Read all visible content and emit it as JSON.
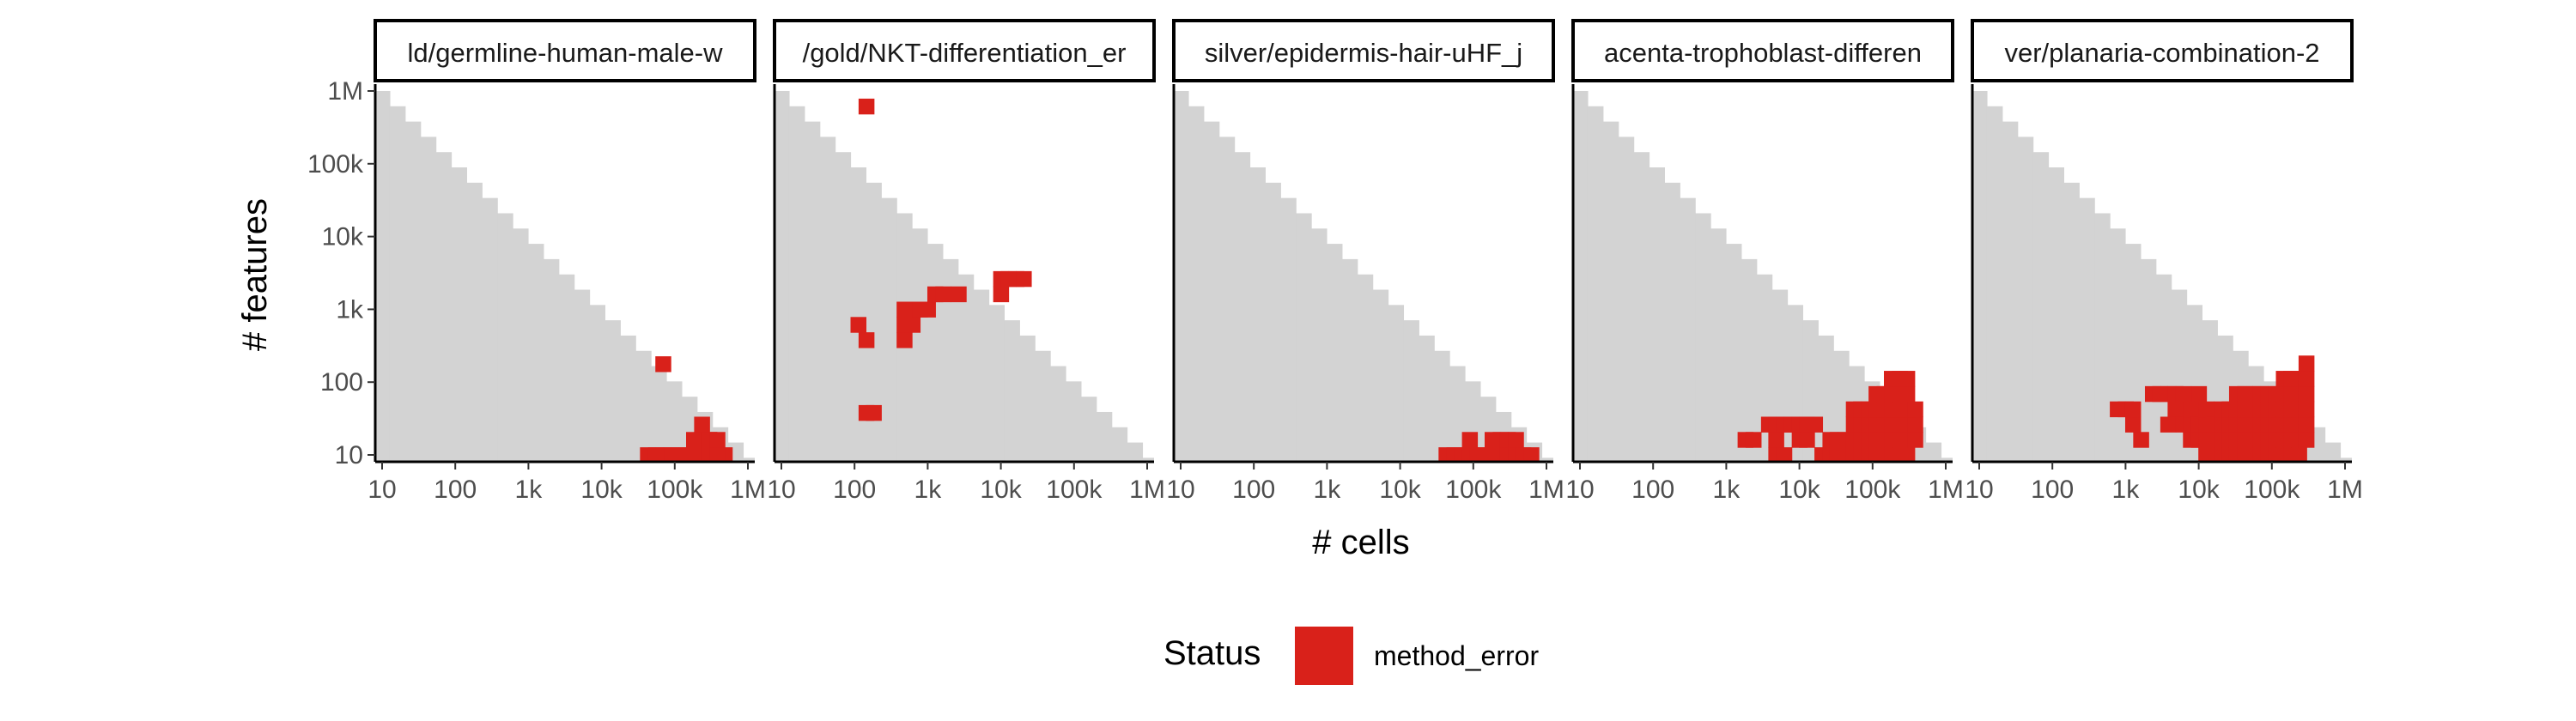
{
  "chart_data": {
    "type": "heatmap",
    "x_scale": "log10",
    "y_scale": "log10",
    "xlabel": "# cells",
    "ylabel": "# features",
    "xlim": [
      10,
      1000000
    ],
    "ylim": [
      10,
      1000000
    ],
    "x_ticks": [
      "10",
      "100",
      "1k",
      "10k",
      "100k",
      "1M"
    ],
    "y_ticks": [
      "10",
      "100",
      "1k",
      "10k",
      "100k",
      "1M"
    ],
    "grid": false,
    "legend": {
      "title": "Status",
      "position": "bottom",
      "entries": [
        {
          "label": "method_error",
          "color": "#d9211a"
        }
      ]
    },
    "colors": {
      "background_cells": "#d3d3d3",
      "method_error": "#d9211a"
    },
    "panels": [
      {
        "strip_label": "ld/germline-human-male-w",
        "method_error_cells_log10_cells_features": [
          [
            4.63,
            1.0
          ],
          [
            4.84,
            1.0
          ],
          [
            4.84,
            2.25
          ],
          [
            5.26,
            1.0
          ],
          [
            4.95,
            1.0
          ],
          [
            5.05,
            1.0
          ],
          [
            4.74,
            1.0
          ],
          [
            5.16,
            1.0
          ],
          [
            5.37,
            1.0
          ],
          [
            5.47,
            1.0
          ],
          [
            5.68,
            1.0
          ],
          [
            5.26,
            1.21
          ],
          [
            5.37,
            1.21
          ],
          [
            5.47,
            1.21
          ],
          [
            5.37,
            1.42
          ],
          [
            5.47,
            1.21
          ],
          [
            5.58,
            1.21
          ],
          [
            5.58,
            1.0
          ]
        ]
      },
      {
        "strip_label": "/gold/NKT-differentiation_er",
        "method_error_cells_log10_cells_features": [
          [
            2.16,
            5.79
          ],
          [
            2.05,
            2.79
          ],
          [
            2.16,
            2.58
          ],
          [
            2.16,
            1.58
          ],
          [
            2.26,
            1.58
          ],
          [
            2.68,
            3.0
          ],
          [
            2.68,
            2.79
          ],
          [
            2.68,
            2.58
          ],
          [
            2.79,
            2.79
          ],
          [
            2.89,
            3.0
          ],
          [
            3.0,
            3.0
          ],
          [
            3.1,
            3.21
          ],
          [
            3.21,
            3.21
          ],
          [
            3.42,
            3.21
          ],
          [
            4.0,
            3.21
          ],
          [
            4.0,
            3.42
          ],
          [
            4.1,
            3.42
          ],
          [
            4.21,
            3.42
          ],
          [
            4.31,
            3.42
          ]
        ]
      },
      {
        "strip_label": "silver/epidermis-hair-uHF_j",
        "method_error_cells_log10_cells_features": [
          [
            4.63,
            1.0
          ],
          [
            4.74,
            1.0
          ],
          [
            4.84,
            1.0
          ],
          [
            4.95,
            1.0
          ],
          [
            5.05,
            1.0
          ],
          [
            5.16,
            1.0
          ],
          [
            4.95,
            1.21
          ],
          [
            5.26,
            1.0
          ],
          [
            5.26,
            1.21
          ],
          [
            5.37,
            1.21
          ],
          [
            5.47,
            1.21
          ],
          [
            5.58,
            1.21
          ],
          [
            5.47,
            1.0
          ],
          [
            5.58,
            1.0
          ],
          [
            5.68,
            1.0
          ],
          [
            5.79,
            1.0
          ]
        ]
      },
      {
        "strip_label": "acenta-trophoblast-differen",
        "method_error_cells_log10_cells_features": [
          [
            3.26,
            1.21
          ],
          [
            3.37,
            1.21
          ],
          [
            3.58,
            1.42
          ],
          [
            3.68,
            1.42
          ],
          [
            3.79,
            1.42
          ],
          [
            3.89,
            1.42
          ],
          [
            4.0,
            1.42
          ],
          [
            4.1,
            1.42
          ],
          [
            4.21,
            1.42
          ],
          [
            3.68,
            1.21
          ],
          [
            3.68,
            1.0
          ],
          [
            3.79,
            1.0
          ],
          [
            4.0,
            1.21
          ],
          [
            4.1,
            1.21
          ],
          [
            4.31,
            1.0
          ],
          [
            4.42,
            1.0
          ],
          [
            4.52,
            1.0
          ],
          [
            4.63,
            1.0
          ],
          [
            4.74,
            1.0
          ],
          [
            4.84,
            1.0
          ],
          [
            4.95,
            1.0
          ],
          [
            5.05,
            1.0
          ],
          [
            5.16,
            1.0
          ],
          [
            5.26,
            1.0
          ],
          [
            5.37,
            1.0
          ],
          [
            5.47,
            1.0
          ],
          [
            4.42,
            1.21
          ],
          [
            4.52,
            1.21
          ],
          [
            4.63,
            1.21
          ],
          [
            4.74,
            1.21
          ],
          [
            4.84,
            1.21
          ],
          [
            4.95,
            1.21
          ],
          [
            5.05,
            1.21
          ],
          [
            5.16,
            1.21
          ],
          [
            5.26,
            1.21
          ],
          [
            5.37,
            1.21
          ],
          [
            5.47,
            1.21
          ],
          [
            5.58,
            1.21
          ],
          [
            4.74,
            1.42
          ],
          [
            4.84,
            1.42
          ],
          [
            4.95,
            1.42
          ],
          [
            5.05,
            1.42
          ],
          [
            5.16,
            1.42
          ],
          [
            5.26,
            1.42
          ],
          [
            5.37,
            1.42
          ],
          [
            5.47,
            1.42
          ],
          [
            5.58,
            1.42
          ],
          [
            4.74,
            1.63
          ],
          [
            4.84,
            1.63
          ],
          [
            4.95,
            1.63
          ],
          [
            5.05,
            1.63
          ],
          [
            5.16,
            1.63
          ],
          [
            5.26,
            1.63
          ],
          [
            5.37,
            1.63
          ],
          [
            5.47,
            1.63
          ],
          [
            5.58,
            1.63
          ],
          [
            5.05,
            1.84
          ],
          [
            5.16,
            1.84
          ],
          [
            5.26,
            1.84
          ],
          [
            5.37,
            1.84
          ],
          [
            5.47,
            1.84
          ],
          [
            5.26,
            2.05
          ],
          [
            5.37,
            2.05
          ],
          [
            5.47,
            2.05
          ]
        ]
      },
      {
        "strip_label": "ver/planaria-combination-2",
        "method_error_cells_log10_cells_features": [
          [
            2.89,
            1.63
          ],
          [
            3.0,
            1.63
          ],
          [
            3.1,
            1.42
          ],
          [
            3.1,
            1.63
          ],
          [
            3.21,
            1.21
          ],
          [
            3.37,
            1.84
          ],
          [
            3.47,
            1.84
          ],
          [
            3.58,
            1.84
          ],
          [
            3.68,
            1.63
          ],
          [
            3.68,
            1.84
          ],
          [
            3.58,
            1.42
          ],
          [
            3.79,
            1.42
          ],
          [
            3.89,
            1.21
          ],
          [
            3.89,
            1.42
          ],
          [
            3.89,
            1.63
          ],
          [
            4.0,
            1.21
          ],
          [
            4.0,
            1.42
          ],
          [
            4.1,
            1.0
          ],
          [
            4.1,
            1.21
          ],
          [
            4.1,
            1.42
          ],
          [
            4.1,
            1.63
          ],
          [
            4.21,
            1.0
          ],
          [
            4.21,
            1.21
          ],
          [
            4.21,
            1.42
          ],
          [
            4.31,
            1.0
          ],
          [
            4.31,
            1.21
          ],
          [
            4.31,
            1.42
          ],
          [
            4.31,
            1.63
          ],
          [
            4.42,
            1.0
          ],
          [
            4.42,
            1.21
          ],
          [
            4.42,
            1.42
          ],
          [
            4.42,
            1.63
          ],
          [
            4.52,
            1.0
          ],
          [
            4.52,
            1.21
          ],
          [
            4.52,
            1.42
          ],
          [
            4.52,
            1.63
          ],
          [
            4.52,
            1.84
          ],
          [
            4.63,
            1.0
          ],
          [
            4.63,
            1.21
          ],
          [
            4.63,
            1.42
          ],
          [
            4.63,
            1.63
          ],
          [
            4.63,
            1.84
          ],
          [
            4.74,
            1.0
          ],
          [
            4.74,
            1.21
          ],
          [
            4.74,
            1.42
          ],
          [
            4.74,
            1.63
          ],
          [
            4.74,
            1.84
          ],
          [
            4.84,
            1.0
          ],
          [
            4.84,
            1.21
          ],
          [
            4.84,
            1.42
          ],
          [
            4.84,
            1.63
          ],
          [
            4.84,
            1.84
          ],
          [
            4.95,
            1.0
          ],
          [
            4.95,
            1.21
          ],
          [
            4.95,
            1.42
          ],
          [
            4.95,
            1.63
          ],
          [
            4.95,
            1.84
          ],
          [
            5.05,
            1.0
          ],
          [
            5.05,
            1.21
          ],
          [
            5.05,
            1.42
          ],
          [
            5.05,
            1.63
          ],
          [
            5.05,
            1.84
          ],
          [
            5.16,
            1.0
          ],
          [
            5.16,
            1.21
          ],
          [
            5.16,
            1.42
          ],
          [
            5.16,
            1.63
          ],
          [
            5.16,
            1.84
          ],
          [
            5.16,
            2.05
          ],
          [
            5.26,
            1.0
          ],
          [
            5.26,
            1.21
          ],
          [
            5.26,
            1.42
          ],
          [
            5.26,
            1.63
          ],
          [
            5.26,
            1.84
          ],
          [
            5.26,
            2.05
          ],
          [
            5.37,
            1.0
          ],
          [
            5.37,
            1.21
          ],
          [
            5.37,
            1.42
          ],
          [
            5.37,
            1.63
          ],
          [
            5.37,
            1.84
          ],
          [
            5.37,
            2.05
          ],
          [
            5.47,
            1.21
          ],
          [
            5.47,
            1.42
          ],
          [
            5.47,
            1.63
          ],
          [
            5.47,
            1.84
          ],
          [
            5.47,
            2.05
          ],
          [
            5.47,
            2.26
          ],
          [
            4.0,
            1.84
          ],
          [
            3.79,
            1.84
          ]
        ]
      }
    ]
  }
}
